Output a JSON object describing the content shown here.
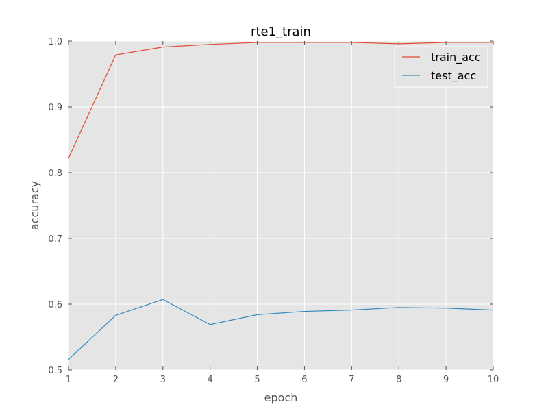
{
  "chart_data": {
    "type": "line",
    "title": "rte1_train",
    "xlabel": "epoch",
    "ylabel": "accuracy",
    "x": [
      1,
      2,
      3,
      4,
      5,
      6,
      7,
      8,
      9,
      10
    ],
    "xlim": [
      1,
      10
    ],
    "ylim": [
      0.5,
      1.0
    ],
    "xticks": [
      1,
      2,
      3,
      4,
      5,
      6,
      7,
      8,
      9,
      10
    ],
    "yticks": [
      0.5,
      0.6,
      0.7,
      0.8,
      0.9,
      1.0
    ],
    "ytick_labels": [
      "0.5",
      "0.6",
      "0.7",
      "0.8",
      "0.9",
      "1.0"
    ],
    "grid": true,
    "legend_position": "top-right",
    "series": [
      {
        "name": "train_acc",
        "color": "#E24A33",
        "values": [
          0.822,
          0.979,
          0.991,
          0.995,
          0.998,
          0.998,
          0.998,
          0.996,
          0.998,
          0.998
        ]
      },
      {
        "name": "test_acc",
        "color": "#348ABD",
        "values": [
          0.516,
          0.583,
          0.607,
          0.569,
          0.584,
          0.589,
          0.591,
          0.595,
          0.594,
          0.591
        ]
      }
    ]
  }
}
